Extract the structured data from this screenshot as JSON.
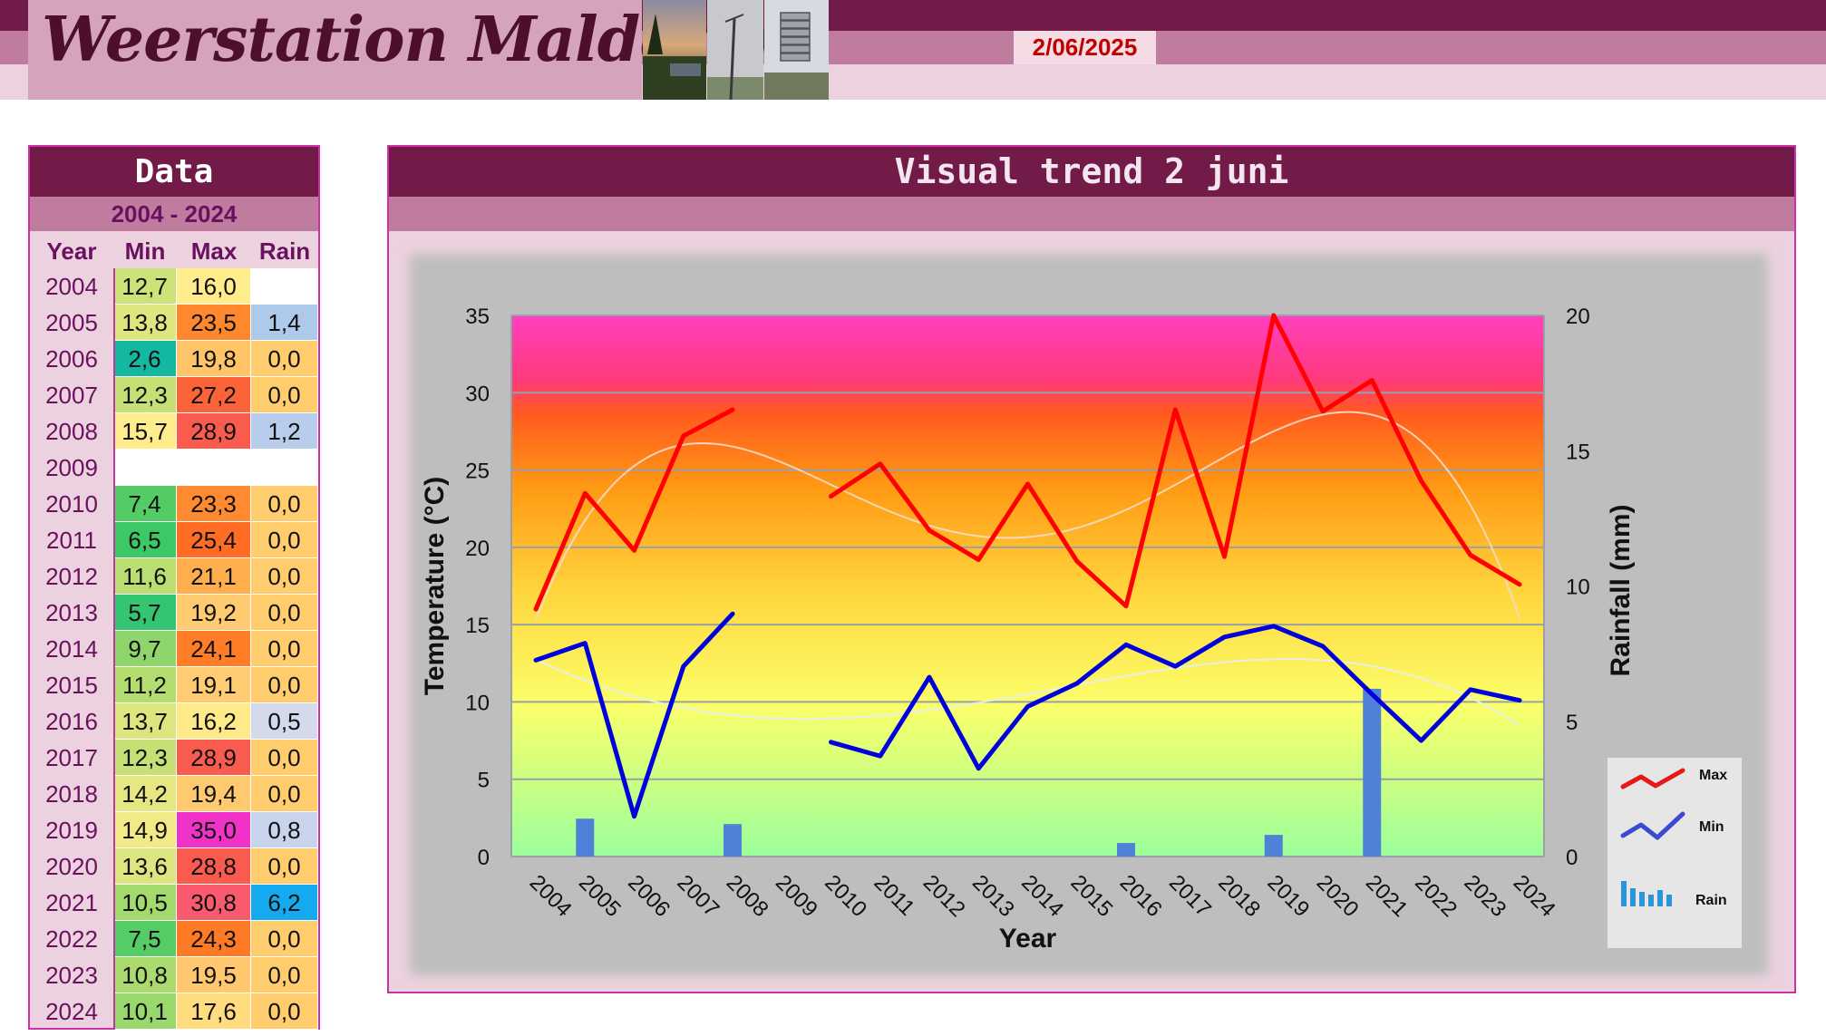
{
  "header": {
    "title": "Weerstation Malderen",
    "date": "2/06/2025"
  },
  "data_panel": {
    "title": "Data",
    "year_range": "2004 - 2024",
    "columns": [
      "Year",
      "Min",
      "Max",
      "Rain"
    ],
    "rows": [
      {
        "year": "2004",
        "min": "12,7",
        "max": "16,0",
        "rain": ""
      },
      {
        "year": "2005",
        "min": "13,8",
        "max": "23,5",
        "rain": "1,4"
      },
      {
        "year": "2006",
        "min": "2,6",
        "max": "19,8",
        "rain": "0,0"
      },
      {
        "year": "2007",
        "min": "12,3",
        "max": "27,2",
        "rain": "0,0"
      },
      {
        "year": "2008",
        "min": "15,7",
        "max": "28,9",
        "rain": "1,2"
      },
      {
        "year": "2009",
        "min": "",
        "max": "",
        "rain": ""
      },
      {
        "year": "2010",
        "min": "7,4",
        "max": "23,3",
        "rain": "0,0"
      },
      {
        "year": "2011",
        "min": "6,5",
        "max": "25,4",
        "rain": "0,0"
      },
      {
        "year": "2012",
        "min": "11,6",
        "max": "21,1",
        "rain": "0,0"
      },
      {
        "year": "2013",
        "min": "5,7",
        "max": "19,2",
        "rain": "0,0"
      },
      {
        "year": "2014",
        "min": "9,7",
        "max": "24,1",
        "rain": "0,0"
      },
      {
        "year": "2015",
        "min": "11,2",
        "max": "19,1",
        "rain": "0,0"
      },
      {
        "year": "2016",
        "min": "13,7",
        "max": "16,2",
        "rain": "0,5"
      },
      {
        "year": "2017",
        "min": "12,3",
        "max": "28,9",
        "rain": "0,0"
      },
      {
        "year": "2018",
        "min": "14,2",
        "max": "19,4",
        "rain": "0,0"
      },
      {
        "year": "2019",
        "min": "14,9",
        "max": "35,0",
        "rain": "0,8"
      },
      {
        "year": "2020",
        "min": "13,6",
        "max": "28,8",
        "rain": "0,0"
      },
      {
        "year": "2021",
        "min": "10,5",
        "max": "30,8",
        "rain": "6,2"
      },
      {
        "year": "2022",
        "min": "7,5",
        "max": "24,3",
        "rain": "0,0"
      },
      {
        "year": "2023",
        "min": "10,8",
        "max": "19,5",
        "rain": "0,0"
      },
      {
        "year": "2024",
        "min": "10,1",
        "max": "17,6",
        "rain": "0,0"
      }
    ]
  },
  "chart_panel": {
    "title": "Visual  trend 2 juni"
  },
  "colors": {
    "brand_dark": "#721a48",
    "brand_mid": "#c07c9e",
    "brand_light": "#ecd2de",
    "max_line": "#ff0000",
    "min_line": "#0000dd",
    "rain_bar": "#4f81d8",
    "date_text": "#c00000"
  },
  "chart_data": {
    "type": "line",
    "title": "",
    "xlabel": "Year",
    "ylabel": "Temperature (°C)",
    "y2label": "Rainfall (mm)",
    "categories": [
      "2004",
      "2005",
      "2006",
      "2007",
      "2008",
      "2009",
      "2010",
      "2011",
      "2012",
      "2013",
      "2014",
      "2015",
      "2016",
      "2017",
      "2018",
      "2019",
      "2020",
      "2021",
      "2022",
      "2023",
      "2024"
    ],
    "ylim": [
      0,
      35
    ],
    "yticks": [
      0,
      5,
      10,
      15,
      20,
      25,
      30,
      35
    ],
    "y2lim": [
      0,
      20
    ],
    "y2ticks": [
      0,
      5,
      10,
      15,
      20
    ],
    "series": [
      {
        "name": "Max",
        "axis": "left",
        "color": "#ff0000",
        "values": [
          16.0,
          23.5,
          19.8,
          27.2,
          28.9,
          null,
          23.3,
          25.4,
          21.1,
          19.2,
          24.1,
          19.1,
          16.2,
          28.9,
          19.4,
          35.0,
          28.8,
          30.8,
          24.3,
          19.5,
          17.6
        ]
      },
      {
        "name": "Min",
        "axis": "left",
        "color": "#0000dd",
        "values": [
          12.7,
          13.8,
          2.6,
          12.3,
          15.7,
          null,
          7.4,
          6.5,
          11.6,
          5.7,
          9.7,
          11.2,
          13.7,
          12.3,
          14.2,
          14.9,
          13.6,
          10.5,
          7.5,
          10.8,
          10.1
        ]
      },
      {
        "name": "Rain",
        "axis": "right",
        "type": "bar",
        "color": "#4f81d8",
        "values": [
          null,
          1.4,
          0.0,
          0.0,
          1.2,
          null,
          0.0,
          0.0,
          0.0,
          0.0,
          0.0,
          0.0,
          0.5,
          0.0,
          0.0,
          0.8,
          0.0,
          6.2,
          0.0,
          0.0,
          0.0
        ]
      }
    ],
    "trendlines": true,
    "grid": true,
    "legend": "right",
    "legend_entries": [
      "Max",
      "Min",
      "Rain"
    ]
  }
}
